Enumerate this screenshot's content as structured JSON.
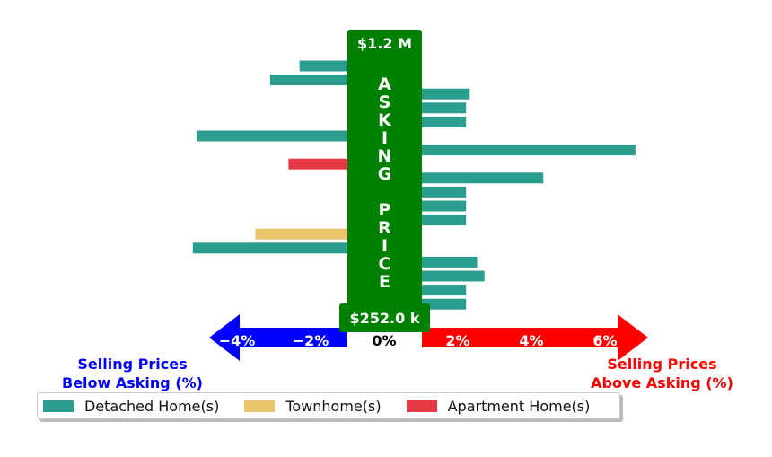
{
  "chart_data": {
    "type": "bar",
    "orientation": "horizontal",
    "xlim": [
      -5.3,
      6.5
    ],
    "ticks": [
      "−4%",
      "−2%",
      "0%",
      "2%",
      "4%",
      "6%"
    ],
    "tick_values": [
      -4,
      -2,
      0,
      2,
      4,
      6
    ],
    "center_band": {
      "text": "ASKING PRICE",
      "max_label": "$1.2 M",
      "min_label": "$252.0 k",
      "color": "#008000"
    },
    "left_label": "Selling Prices\nBelow Asking (%)",
    "right_label": "Selling Prices\nAbove Asking (%)",
    "left_color": "#0000ff",
    "right_color": "#ff0000",
    "series": [
      {
        "name": "Detached Home(s)",
        "color": "#2a9d8f"
      },
      {
        "name": "Townhome(s)",
        "color": "#e9c46a"
      },
      {
        "name": "Apartment Home(s)",
        "color": "#e63946"
      }
    ],
    "bars": [
      {
        "series": 0,
        "value": -1.3
      },
      {
        "series": 0,
        "value": -2.1
      },
      {
        "series": 0,
        "value": 1.3
      },
      {
        "series": 0,
        "value": 1.2
      },
      {
        "series": 0,
        "value": 1.2
      },
      {
        "series": 0,
        "value": -4.1
      },
      {
        "series": 0,
        "value": 5.8
      },
      {
        "series": 2,
        "value": -1.6
      },
      {
        "series": 0,
        "value": 3.3
      },
      {
        "series": 0,
        "value": 1.2
      },
      {
        "series": 0,
        "value": 1.2
      },
      {
        "series": 0,
        "value": 1.2
      },
      {
        "series": 1,
        "value": -2.5
      },
      {
        "series": 0,
        "value": -4.2
      },
      {
        "series": 0,
        "value": 1.5
      },
      {
        "series": 0,
        "value": 1.7
      },
      {
        "series": 0,
        "value": 1.2
      },
      {
        "series": 0,
        "value": 1.2
      }
    ]
  }
}
